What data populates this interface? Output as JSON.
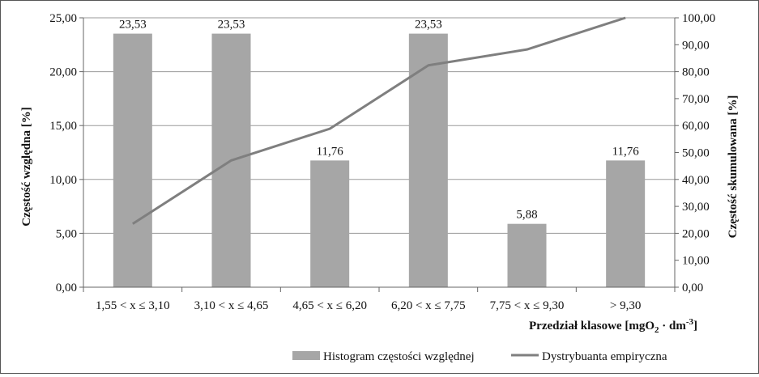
{
  "chart_data": {
    "type": "bar",
    "categories": [
      "1,55 < x ≤ 3,10",
      "3,10 < x ≤ 4,65",
      "4,65 < x ≤ 6,20",
      "6,20 < x ≤ 7,75",
      "7,75 < x ≤ 9,30",
      "> 9,30"
    ],
    "series": [
      {
        "name": "Histogram częstości względnej",
        "type": "bar",
        "axis": "left",
        "values": [
          23.53,
          23.53,
          11.76,
          23.53,
          5.88,
          11.76
        ],
        "data_labels": [
          "23,53",
          "23,53",
          "11,76",
          "23,53",
          "5,88",
          "11,76"
        ],
        "color": "#a6a6a6"
      },
      {
        "name": "Dystrybuanta empiryczna",
        "type": "line",
        "axis": "right",
        "values": [
          23.53,
          47.06,
          58.82,
          82.35,
          88.24,
          100.0
        ],
        "color": "#7f7f7f"
      }
    ],
    "xlabel_main": "Przedział klasowe [mgO",
    "xlabel_sub": "2",
    "xlabel_mid": " · dm",
    "xlabel_sup": "-3",
    "xlabel_end": "]",
    "ylabel": "Częstość względna [%]",
    "y2label": "Częstość skumulowana [%]",
    "ylim": [
      0,
      25
    ],
    "y2lim": [
      0,
      100
    ],
    "yticks": [
      "0,00",
      "5,00",
      "10,00",
      "15,00",
      "20,00",
      "25,00"
    ],
    "y2ticks": [
      "0,00",
      "10,00",
      "20,00",
      "30,00",
      "40,00",
      "50,00",
      "60,00",
      "70,00",
      "80,00",
      "90,00",
      "100,00"
    ],
    "grid": true,
    "legend_position": "bottom-right"
  }
}
